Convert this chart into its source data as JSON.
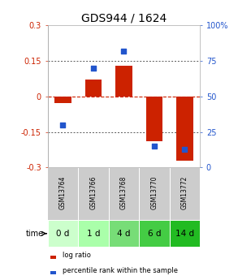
{
  "title": "GDS944 / 1624",
  "samples": [
    "GSM13764",
    "GSM13766",
    "GSM13768",
    "GSM13770",
    "GSM13772"
  ],
  "time_labels": [
    "0 d",
    "1 d",
    "4 d",
    "6 d",
    "14 d"
  ],
  "log_ratios": [
    -0.03,
    0.07,
    0.13,
    -0.19,
    -0.27
  ],
  "percentile_ranks": [
    30,
    70,
    82,
    15,
    13
  ],
  "ylim_left": [
    -0.3,
    0.3
  ],
  "ylim_right": [
    0,
    100
  ],
  "yticks_left": [
    -0.3,
    -0.15,
    0,
    0.15,
    0.3
  ],
  "yticks_right": [
    0,
    25,
    50,
    75,
    100
  ],
  "bar_color": "#cc2200",
  "dot_color": "#2255cc",
  "hline_color": "#cc2200",
  "title_fontsize": 10,
  "bar_width": 0.55,
  "green_shades": [
    "#ccffcc",
    "#aaffaa",
    "#77dd77",
    "#44cc44",
    "#22bb22"
  ],
  "bg_color": "#ffffff",
  "gray_color": "#cccccc",
  "label_fontsize": 5.5,
  "tick_fontsize": 7,
  "time_fontsize": 7.5
}
